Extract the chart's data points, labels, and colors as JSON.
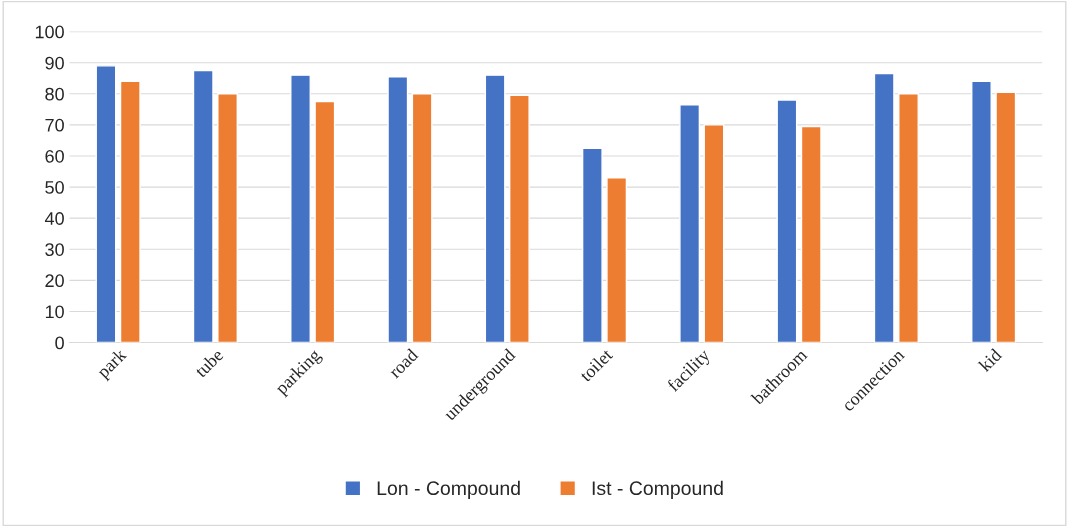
{
  "chart_data": {
    "type": "bar",
    "categories": [
      "park",
      "tube",
      "parking",
      "road",
      "underground",
      "toilet",
      "facility",
      "bathroom",
      "connection",
      "kid"
    ],
    "series": [
      {
        "name": "Lon - Compound",
        "color": "#4472c4",
        "values": [
          89,
          87.5,
          86,
          85.5,
          86,
          62.5,
          76.5,
          78,
          86.5,
          84
        ]
      },
      {
        "name": "Ist - Compound",
        "color": "#ed7d31",
        "values": [
          84,
          80,
          77.5,
          80,
          79.5,
          53,
          70,
          69.5,
          80,
          80.5
        ]
      }
    ],
    "ylim": [
      0,
      100
    ],
    "yticks": [
      0,
      10,
      20,
      30,
      40,
      50,
      60,
      70,
      80,
      90,
      100
    ],
    "grid": "y",
    "legend": "bottom"
  }
}
